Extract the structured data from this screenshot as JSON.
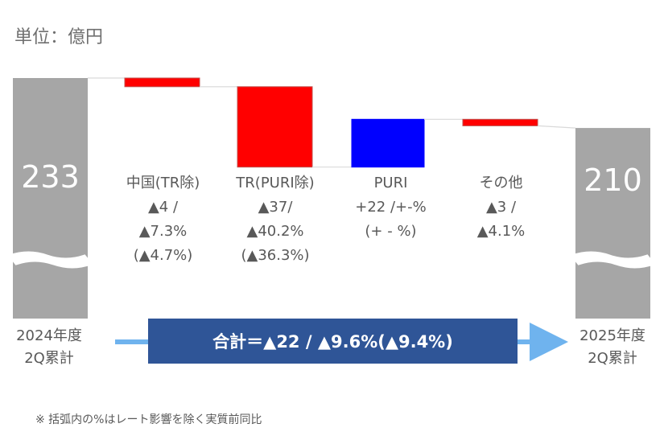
{
  "unit_label": "単位：億円",
  "chart_data": {
    "type": "waterfall",
    "start": {
      "label_line1": "2024年度",
      "label_line2": "2Q累計",
      "value": 233,
      "display": "233"
    },
    "end": {
      "label_line1": "2025年度",
      "label_line2": "2Q累計",
      "value": 210,
      "display": "210"
    },
    "steps": [
      {
        "name": "中国(TR除)",
        "delta": -4,
        "color": "#ff0000",
        "lines": [
          "中国(TR除)",
          "▲4 /",
          "▲7.3%",
          "(▲4.7%)"
        ]
      },
      {
        "name": "TR(PURI除)",
        "delta": -37,
        "color": "#ff0000",
        "lines": [
          "TR(PURI除)",
          "▲37/",
          "▲40.2%",
          "(▲36.3%)"
        ]
      },
      {
        "name": "PURI",
        "delta": 22,
        "color": "#0000ff",
        "lines": [
          "PURI",
          "+22 /+-%",
          "(+ - %)"
        ]
      },
      {
        "name": "その他",
        "delta": -3,
        "color": "#ff0000",
        "lines": [
          "その他",
          "▲3 /",
          "▲4.1%"
        ]
      }
    ],
    "total_text": "合計＝▲22 / ▲9.6%(▲9.4%)",
    "total_bar_color": "#a6a6a6"
  },
  "footnote": "※ 括弧内の%はレート影響を除く実質前同比"
}
